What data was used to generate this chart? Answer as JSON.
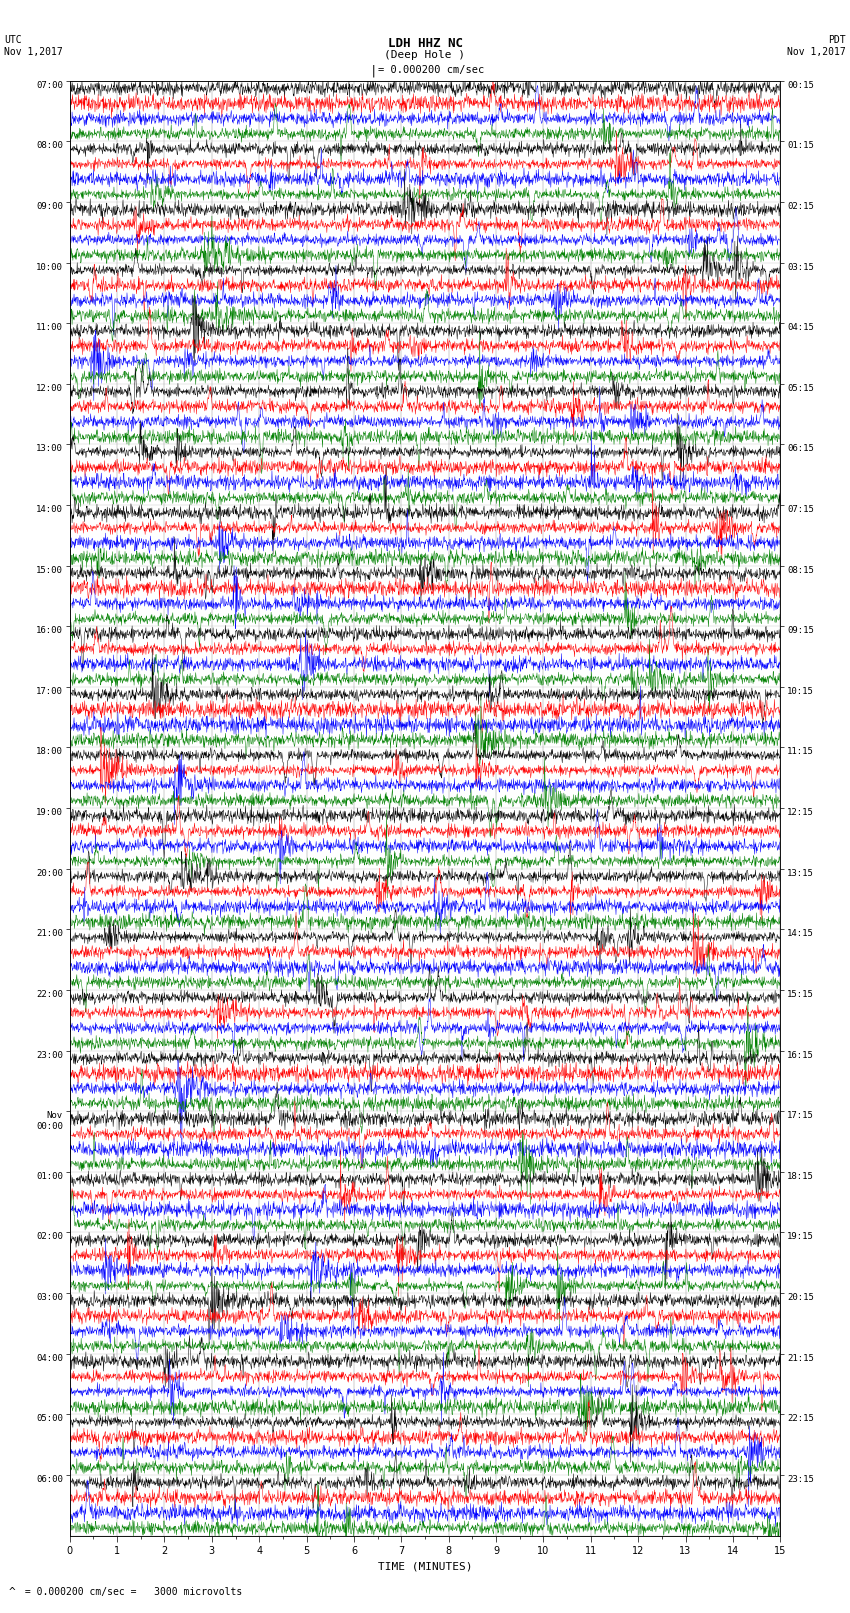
{
  "title_line1": "LDH HHZ NC",
  "title_line2": "(Deep Hole )",
  "scale_label": "= 0.000200 cm/sec",
  "footer_label": "= 0.000200 cm/sec =   3000 microvolts",
  "left_label": "UTC\nNov 1,2017",
  "right_label": "PDT\nNov 1,2017",
  "xlabel": "TIME (MINUTES)",
  "bg_color": "#ffffff",
  "trace_colors": [
    "black",
    "red",
    "blue",
    "green"
  ],
  "left_times_major": [
    "07:00",
    "08:00",
    "09:00",
    "10:00",
    "11:00",
    "12:00",
    "13:00",
    "14:00",
    "15:00",
    "16:00",
    "17:00",
    "18:00",
    "19:00",
    "20:00",
    "21:00",
    "22:00",
    "23:00",
    "Nov\n00:00",
    "01:00",
    "02:00",
    "03:00",
    "04:00",
    "05:00",
    "06:00"
  ],
  "right_times_major": [
    "00:15",
    "01:15",
    "02:15",
    "03:15",
    "04:15",
    "05:15",
    "06:15",
    "07:15",
    "08:15",
    "09:15",
    "10:15",
    "11:15",
    "12:15",
    "13:15",
    "14:15",
    "15:15",
    "16:15",
    "17:15",
    "18:15",
    "19:15",
    "20:15",
    "21:15",
    "22:15",
    "23:15"
  ],
  "n_hour_blocks": 24,
  "traces_per_block": 4,
  "xmin": 0,
  "xmax": 15,
  "random_seed": 42,
  "figsize": [
    8.5,
    16.13
  ],
  "dpi": 100,
  "lw": 0.35
}
